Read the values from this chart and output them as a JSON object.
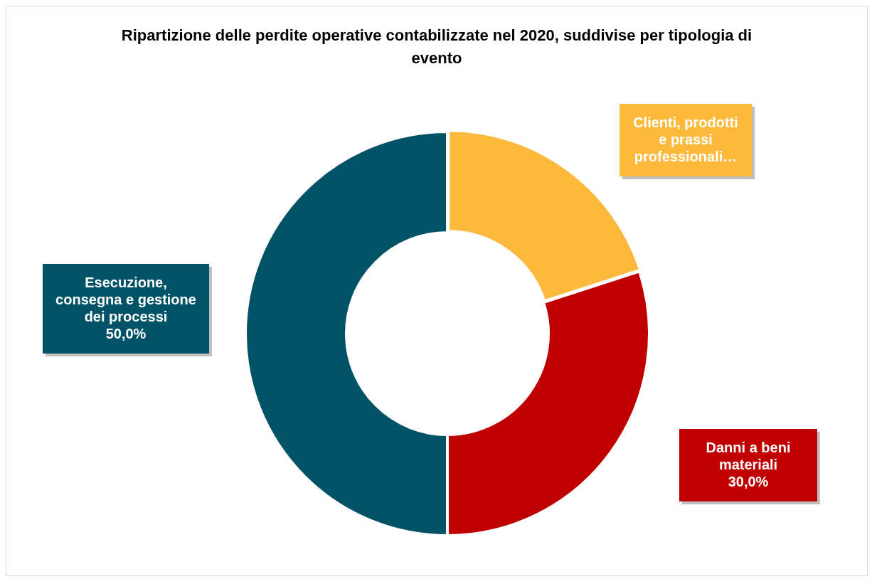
{
  "chart_data": {
    "type": "donut",
    "title": "Ripartizione delle perdite operative contabilizzate nel 2020, suddivise per tipologia di evento",
    "categories": [
      "Clienti, prodotti e prassi professionali…",
      "Danni a beni materiali",
      "Esecuzione, consegna e gestione dei processi"
    ],
    "values": [
      20,
      30,
      50
    ],
    "value_labels": [
      null,
      "30,0%",
      "50,0%"
    ],
    "colors": [
      "#fdb93c",
      "#c00000",
      "#005366"
    ],
    "legend": false
  }
}
